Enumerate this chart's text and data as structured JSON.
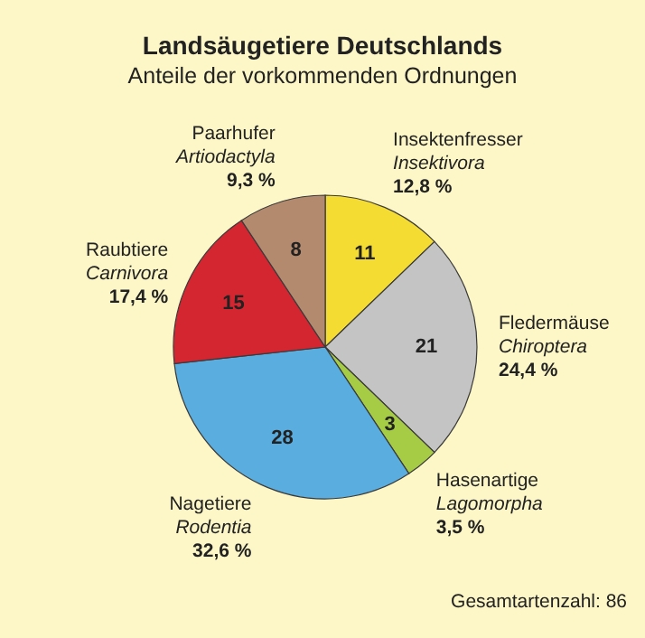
{
  "chart_data": {
    "type": "pie",
    "title": "Landsäugetiere Deutschlands",
    "subtitle": "Anteile der vorkommenden Ordnungen",
    "categories": [
      "Insektenfresser",
      "Fledermäuse",
      "Hasenartige",
      "Nagetiere",
      "Raubtiere",
      "Paarhufer"
    ],
    "values": [
      11,
      21,
      3,
      28,
      15,
      8
    ],
    "colors": [
      "#f5dc32",
      "#c4c4c4",
      "#a6cb45",
      "#5aaddf",
      "#d42630",
      "#b38a6e"
    ],
    "data_labels": true,
    "annotations": [
      {
        "text": "Insektivora",
        "x": "Insektenfresser"
      },
      {
        "text": "12,8 %",
        "x": "Insektenfresser"
      },
      {
        "text": "Chiroptera",
        "x": "Fledermäuse"
      },
      {
        "text": "24,4 %",
        "x": "Fledermäuse"
      },
      {
        "text": "Lagomorpha",
        "x": "Hasenartige"
      },
      {
        "text": "3,5 %",
        "x": "Hasenartige"
      },
      {
        "text": "Rodentia",
        "x": "Nagetiere"
      },
      {
        "text": "32,6 %",
        "x": "Nagetiere"
      },
      {
        "text": "Carnivora",
        "x": "Raubtiere"
      },
      {
        "text": "17,4 %",
        "x": "Raubtiere"
      },
      {
        "text": "Artiodactyla",
        "x": "Paarhufer"
      },
      {
        "text": "9,3 %",
        "x": "Paarhufer"
      },
      "Gesamtartenzahl: 86"
    ]
  }
}
